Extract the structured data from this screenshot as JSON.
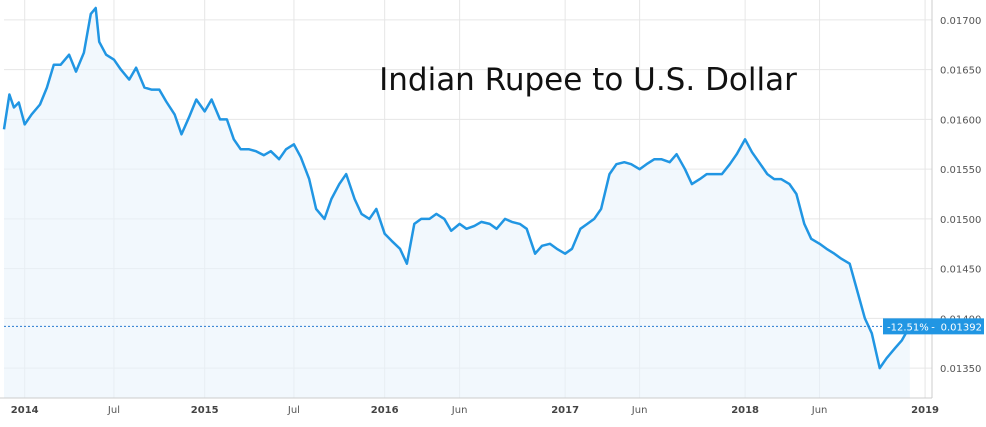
{
  "chart_data": {
    "type": "line",
    "title": "Indian Rupee to U.S. Dollar",
    "xlabel": "",
    "ylabel": "",
    "ylim": [
      0.0132,
      0.0172
    ],
    "y_ticks": [
      "0.01700",
      "0.01650",
      "0.01600",
      "0.01550",
      "0.01500",
      "0.01450",
      "0.01400",
      "0.01350"
    ],
    "x_ticks": [
      {
        "date": "2014-01-01",
        "label": "2014",
        "bold": true
      },
      {
        "date": "2014-07-01",
        "label": "Jul",
        "bold": false
      },
      {
        "date": "2015-01-01",
        "label": "2015",
        "bold": true
      },
      {
        "date": "2015-07-01",
        "label": "Jul",
        "bold": false
      },
      {
        "date": "2016-01-01",
        "label": "2016",
        "bold": true
      },
      {
        "date": "2016-06-01",
        "label": "Jun",
        "bold": false
      },
      {
        "date": "2017-01-01",
        "label": "2017",
        "bold": true
      },
      {
        "date": "2017-06-01",
        "label": "Jun",
        "bold": false
      },
      {
        "date": "2018-01-01",
        "label": "2018",
        "bold": true
      },
      {
        "date": "2018-06-01",
        "label": "Jun",
        "bold": false
      },
      {
        "date": "2019-01-01",
        "label": "2019",
        "bold": true
      }
    ],
    "x_range": [
      "2013-11-20",
      "2019-01-15"
    ],
    "grid": true,
    "legend": "none",
    "colors": {
      "line": "#2196e3",
      "fill": "#eaf3fb",
      "grid": "#e6e6e6",
      "callout_bg": "#2196e3",
      "reference_line": "#2a7bd0"
    },
    "current_callout": {
      "change": "-12.51%",
      "value": 0.01392,
      "value_label": "0.01392"
    },
    "series": [
      {
        "x": [
          "2013-11-20",
          "2013-12-01",
          "2013-12-10",
          "2013-12-20",
          "2014-01-01",
          "2014-01-15",
          "2014-02-01",
          "2014-02-15",
          "2014-03-01",
          "2014-03-15",
          "2014-04-01",
          "2014-04-15",
          "2014-05-01",
          "2014-05-15",
          "2014-05-25",
          "2014-06-01",
          "2014-06-15",
          "2014-07-01",
          "2014-07-15",
          "2014-08-01",
          "2014-08-15",
          "2014-09-01",
          "2014-09-15",
          "2014-10-01",
          "2014-10-15",
          "2014-11-01",
          "2014-11-15",
          "2014-12-01",
          "2014-12-15",
          "2015-01-01",
          "2015-01-15",
          "2015-02-01",
          "2015-02-15",
          "2015-03-01",
          "2015-03-15",
          "2015-04-01",
          "2015-04-15",
          "2015-05-01",
          "2015-05-15",
          "2015-06-01",
          "2015-06-15",
          "2015-07-01",
          "2015-07-15",
          "2015-08-01",
          "2015-08-15",
          "2015-09-01",
          "2015-09-15",
          "2015-10-01",
          "2015-10-15",
          "2015-11-01",
          "2015-11-15",
          "2015-12-01",
          "2015-12-15",
          "2016-01-01",
          "2016-01-15",
          "2016-02-01",
          "2016-02-15",
          "2016-03-01",
          "2016-03-15",
          "2016-04-01",
          "2016-04-15",
          "2016-05-01",
          "2016-05-15",
          "2016-06-01",
          "2016-06-15",
          "2016-07-01",
          "2016-07-15",
          "2016-08-01",
          "2016-08-15",
          "2016-09-01",
          "2016-09-15",
          "2016-10-01",
          "2016-10-15",
          "2016-11-01",
          "2016-11-15",
          "2016-12-01",
          "2016-12-15",
          "2017-01-01",
          "2017-01-15",
          "2017-02-01",
          "2017-02-15",
          "2017-03-01",
          "2017-03-15",
          "2017-04-01",
          "2017-04-15",
          "2017-05-01",
          "2017-05-15",
          "2017-06-01",
          "2017-06-15",
          "2017-07-01",
          "2017-07-15",
          "2017-08-01",
          "2017-08-15",
          "2017-09-01",
          "2017-09-15",
          "2017-10-01",
          "2017-10-15",
          "2017-11-01",
          "2017-11-15",
          "2017-12-01",
          "2017-12-15",
          "2018-01-01",
          "2018-01-15",
          "2018-02-01",
          "2018-02-15",
          "2018-03-01",
          "2018-03-15",
          "2018-04-01",
          "2018-04-15",
          "2018-05-01",
          "2018-05-15",
          "2018-06-01",
          "2018-06-15",
          "2018-07-01",
          "2018-07-15",
          "2018-08-01",
          "2018-08-15",
          "2018-09-01",
          "2018-09-15",
          "2018-10-01",
          "2018-10-15",
          "2018-11-01",
          "2018-11-15",
          "2018-12-01"
        ],
        "values": [
          0.0159,
          0.01625,
          0.01612,
          0.01617,
          0.01595,
          0.01605,
          0.01615,
          0.01632,
          0.01655,
          0.01655,
          0.01665,
          0.01648,
          0.01667,
          0.01706,
          0.01712,
          0.01678,
          0.01665,
          0.0166,
          0.0165,
          0.0164,
          0.01652,
          0.01632,
          0.0163,
          0.0163,
          0.01618,
          0.01605,
          0.01585,
          0.01603,
          0.0162,
          0.01608,
          0.0162,
          0.016,
          0.016,
          0.0158,
          0.0157,
          0.0157,
          0.01568,
          0.01564,
          0.01568,
          0.0156,
          0.0157,
          0.01575,
          0.01562,
          0.0154,
          0.0151,
          0.015,
          0.0152,
          0.01535,
          0.01545,
          0.0152,
          0.01505,
          0.015,
          0.0151,
          0.01485,
          0.01478,
          0.0147,
          0.01455,
          0.01495,
          0.015,
          0.015,
          0.01505,
          0.015,
          0.01488,
          0.01495,
          0.0149,
          0.01493,
          0.01497,
          0.01495,
          0.0149,
          0.015,
          0.01497,
          0.01495,
          0.0149,
          0.01465,
          0.01473,
          0.01475,
          0.0147,
          0.01465,
          0.0147,
          0.0149,
          0.01495,
          0.015,
          0.0151,
          0.01545,
          0.01555,
          0.01557,
          0.01555,
          0.0155,
          0.01555,
          0.0156,
          0.0156,
          0.01557,
          0.01565,
          0.0155,
          0.01535,
          0.0154,
          0.01545,
          0.01545,
          0.01545,
          0.01555,
          0.01565,
          0.0158,
          0.01567,
          0.01555,
          0.01545,
          0.0154,
          0.0154,
          0.01535,
          0.01525,
          0.01495,
          0.0148,
          0.01475,
          0.0147,
          0.01465,
          0.0146,
          0.01455,
          0.0143,
          0.014,
          0.01385,
          0.0135,
          0.0136,
          0.0137,
          0.01378,
          0.01392
        ]
      }
    ]
  }
}
